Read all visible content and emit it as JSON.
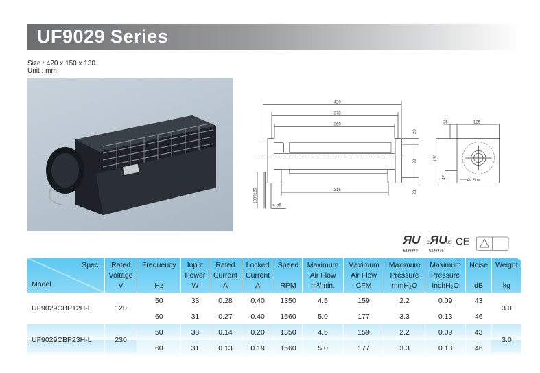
{
  "title": "UF9029 Series",
  "size_line": "Size : 420 x 150 x 130",
  "unit_line": "Unit  : mm",
  "drawing": {
    "dims": [
      "420",
      "378",
      "360",
      "316",
      "20",
      "90",
      "20",
      "1000±20",
      "4-ø6",
      "25",
      "125",
      "130",
      "42"
    ],
    "air_flow": "Air Flow"
  },
  "certs": {
    "ul": "E136370",
    "cul": "E136370",
    "ce": "CE"
  },
  "table": {
    "headers": [
      {
        "top": "Spec.",
        "bottom": "Model"
      },
      {
        "lines": [
          "Rated",
          "Voltage",
          "V"
        ]
      },
      {
        "lines": [
          "Frequency",
          "",
          "Hz"
        ]
      },
      {
        "lines": [
          "Input",
          "Power",
          "W"
        ]
      },
      {
        "lines": [
          "Rated",
          "Current",
          "A"
        ]
      },
      {
        "lines": [
          "Locked",
          "Current",
          "A"
        ]
      },
      {
        "lines": [
          "Speed",
          "",
          "RPM"
        ]
      },
      {
        "lines": [
          "Maximum",
          "Air Flow",
          "m³/min."
        ]
      },
      {
        "lines": [
          "Maximum",
          "Air Flow",
          "CFM"
        ]
      },
      {
        "lines": [
          "Maximum",
          "Pressure",
          "mmH₂O"
        ]
      },
      {
        "lines": [
          "Maximum",
          "Pressure",
          "InchH₂O"
        ]
      },
      {
        "lines": [
          "Noise",
          "",
          "dB"
        ]
      },
      {
        "lines": [
          "Weight",
          "",
          "kg"
        ]
      }
    ],
    "models": [
      {
        "model": "UF9029CBP12H-L",
        "voltage": "120",
        "weight": "3.0",
        "rows": [
          [
            "50",
            "33",
            "0.28",
            "0.40",
            "1350",
            "4.5",
            "159",
            "2.2",
            "0.09",
            "43"
          ],
          [
            "60",
            "31",
            "0.27",
            "0.40",
            "1560",
            "5.0",
            "177",
            "3.3",
            "0.13",
            "46"
          ]
        ]
      },
      {
        "model": "UF9029CBP23H-L",
        "voltage": "230",
        "weight": "3.0",
        "rows": [
          [
            "50",
            "33",
            "0.14",
            "0.20",
            "1350",
            "4.5",
            "159",
            "2.2",
            "0.09",
            "43"
          ],
          [
            "60",
            "31",
            "0.13",
            "0.19",
            "1560",
            "5.0",
            "177",
            "3.3",
            "0.13",
            "46"
          ]
        ]
      }
    ]
  }
}
